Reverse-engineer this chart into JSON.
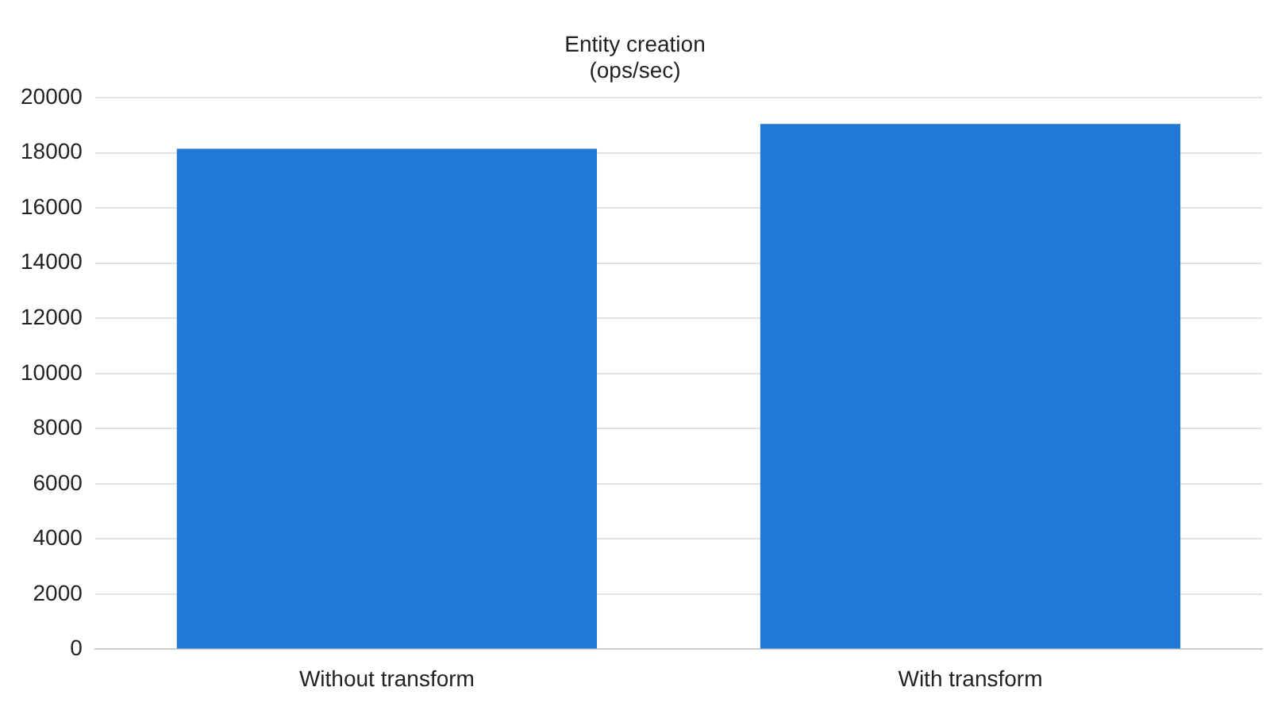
{
  "chart_data": {
    "type": "bar",
    "title": [
      "Entity creation",
      "(ops/sec)"
    ],
    "categories": [
      "Without transform",
      "With transform"
    ],
    "values": [
      18150,
      19050
    ],
    "color": "#2179d6",
    "ylim": [
      0,
      20000
    ],
    "yticks": [
      0,
      2000,
      4000,
      6000,
      8000,
      10000,
      12000,
      14000,
      16000,
      18000,
      20000
    ],
    "grid": "y"
  }
}
